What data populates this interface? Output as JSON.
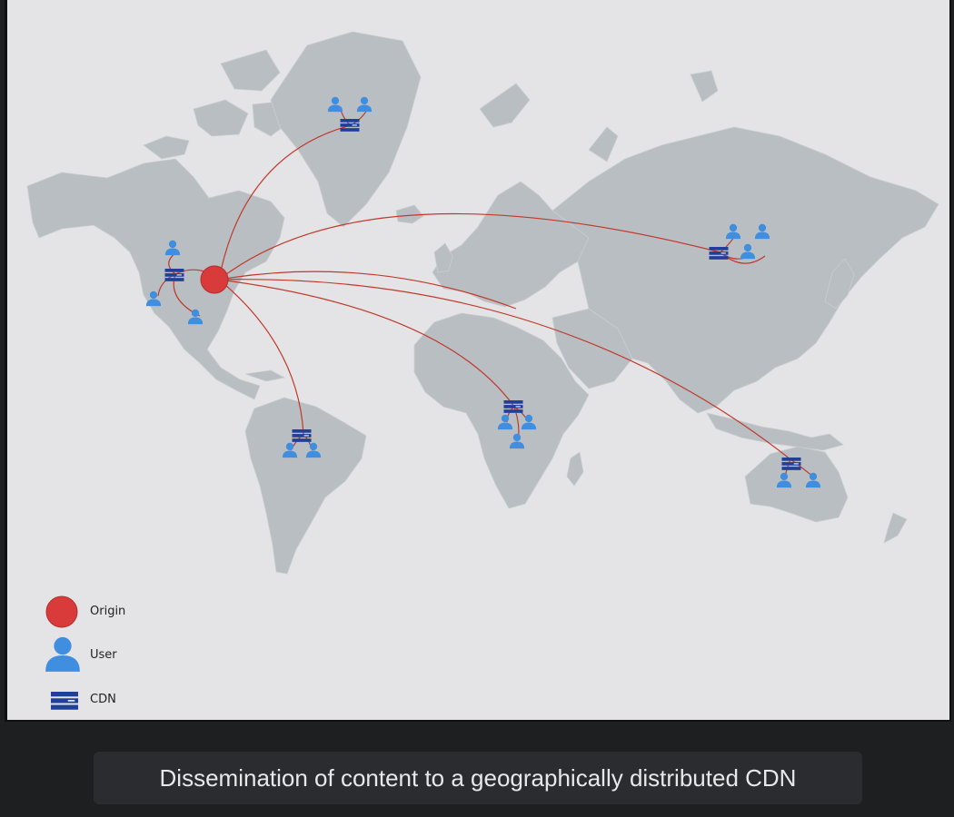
{
  "diagram": {
    "legend": [
      {
        "key": "origin",
        "label": "Origin",
        "icon": "origin-circle-icon",
        "color": "#d93a3a"
      },
      {
        "key": "user",
        "label": "User",
        "icon": "user-icon",
        "color": "#3f8ee0"
      },
      {
        "key": "cdn",
        "label": "CDN",
        "icon": "server-icon",
        "color": "#1f3f99"
      }
    ],
    "colors": {
      "land": "#b9bec3",
      "ocean": "#e4e4e6",
      "link": "#c0392b"
    }
  },
  "caption": "Dissemination of content to a geographically distributed CDN"
}
